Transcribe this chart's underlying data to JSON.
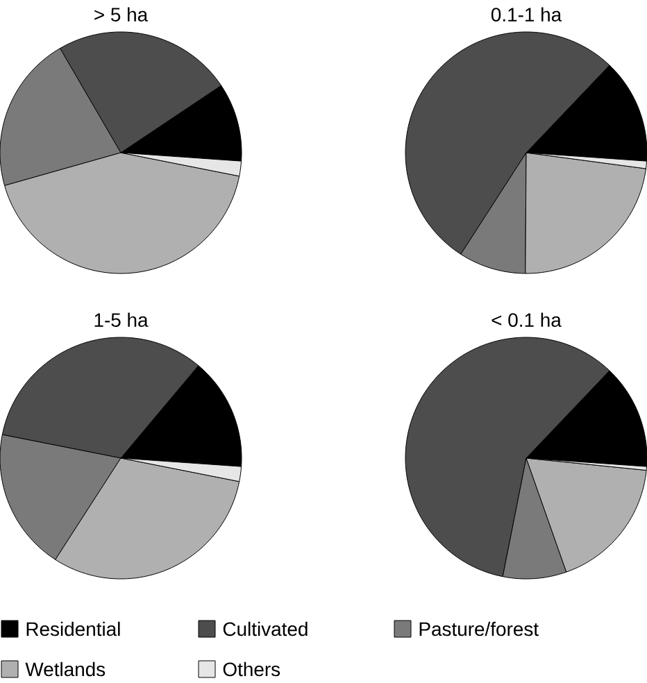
{
  "chart_data": [
    {
      "type": "pie",
      "title": "> 5 ha",
      "categories": [
        "Residential",
        "Cultivated",
        "Pasture/forest",
        "Wetlands",
        "Others"
      ],
      "values": [
        10.5,
        24,
        21,
        42.5,
        2
      ],
      "colors": [
        "#000000",
        "#4d4d4d",
        "#7a7a7a",
        "#b0b0b0",
        "#e6e6e6"
      ],
      "legend": "bottom"
    },
    {
      "type": "pie",
      "title": "0.1-1 ha",
      "categories": [
        null,
        null,
        null,
        null,
        null
      ],
      "values": [
        14,
        53,
        9,
        23,
        1
      ],
      "colors": [
        "#000000",
        "#4d4d4d",
        "#7a7a7a",
        "#b0b0b0",
        "#e6e6e6"
      ]
    },
    {
      "type": "pie",
      "title": "1-5 ha",
      "categories": [
        null,
        null,
        null,
        null,
        null
      ],
      "values": [
        15,
        33,
        19,
        31,
        2
      ],
      "colors": [
        "#000000",
        "#4d4d4d",
        "#7a7a7a",
        "#b0b0b0",
        "#e6e6e6"
      ]
    },
    {
      "type": "pie",
      "title": "< 0.1 ha",
      "categories": [
        null,
        null,
        null,
        null,
        null
      ],
      "values": [
        14,
        59,
        8.5,
        18,
        0.5
      ],
      "colors": [
        "#000000",
        "#4d4d4d",
        "#7a7a7a",
        "#b0b0b0",
        "#e6e6e6"
      ]
    }
  ]
}
